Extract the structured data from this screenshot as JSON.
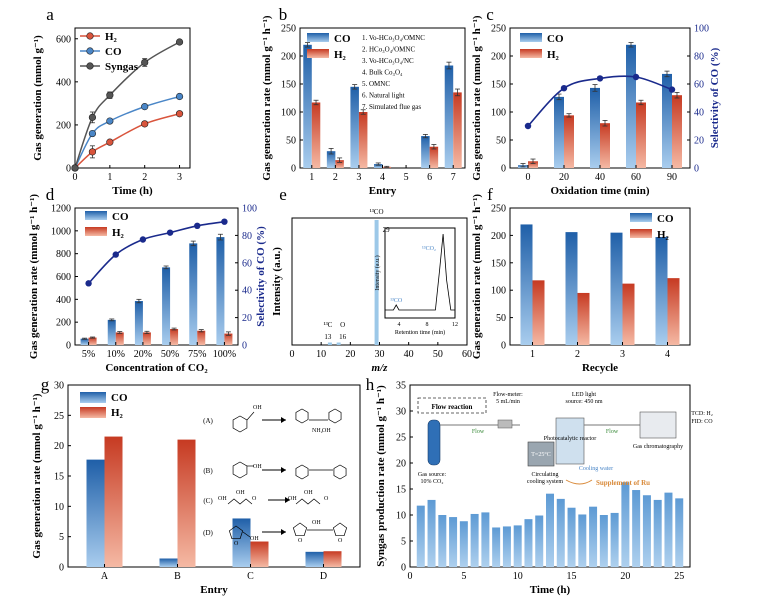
{
  "colors": {
    "co": "#4a86c7",
    "h2": "#d9543c",
    "syngas": "#555555",
    "selectivity": "#1a2a8c",
    "syngas_bars": "#7fb3df",
    "ms": "#9cc8e8"
  },
  "panels": {
    "a": {
      "letter": "a",
      "legend": [
        "H₂",
        "CO",
        "Syngas"
      ]
    },
    "b": {
      "letter": "b",
      "legend": [
        "CO",
        "H₂"
      ],
      "notes": [
        "1. Vo-HCo₃O₄/OMNC",
        "2. HCo₃O₄/OMNC",
        "3. Vo-HCo₃O₄/NC",
        "4. Bulk Co₃O₄",
        "5. OMNC",
        "6. Natural light",
        "7. Simulated flue gas"
      ]
    },
    "c": {
      "letter": "c",
      "legend": [
        "CO",
        "H₂"
      ]
    },
    "d": {
      "letter": "d",
      "legend": [
        "CO",
        "H₂"
      ]
    },
    "e": {
      "letter": "e",
      "peaks": [
        "¹³CO",
        "29",
        "¹³C",
        "13",
        "O",
        "16"
      ],
      "inset": {
        "ylabel": "Intensity (a.u.)",
        "xlabel": "Retention time (min)",
        "ticks": [
          "4",
          "8",
          "12"
        ],
        "peak_labels": [
          "¹³CO₂",
          "¹³CO"
        ]
      }
    },
    "f": {
      "letter": "f",
      "legend": [
        "CO",
        "H₂"
      ]
    },
    "g": {
      "letter": "g",
      "legend": [
        "CO",
        "H₂"
      ],
      "reactions": [
        "(A)",
        "(B)",
        "(C)",
        "(D)"
      ],
      "groups": [
        "OH",
        "NH₂",
        "OH",
        "OH",
        "OH",
        "OH",
        "O",
        "OH",
        "OH",
        "O",
        "O",
        "OH",
        "O",
        "OH",
        "O"
      ]
    },
    "h": {
      "letter": "h",
      "schematic": {
        "title": "Flow reaction",
        "flow_meter": "Flow-meter:",
        "flow_rate": "5 mL/min",
        "led": "LED light",
        "led_source": "source: 450 nm",
        "flow1": "Flow",
        "flow2": "Flow",
        "gas_source": "Gas source:",
        "gas_conc": "10% CO₂",
        "reactor": "Photocatalytic reactor",
        "temp": "T=25°C",
        "cooling": "Circulating",
        "cooling2": "cooling system",
        "cooling_water": "Cooling water",
        "gc": "Gas chromatography",
        "tcd": "TCD: H₂",
        "fid": "FID: CO",
        "supplement": "Supplement of Ru"
      }
    }
  },
  "chart_data": [
    {
      "panel": "a",
      "type": "line",
      "xlabel": "Time (h)",
      "ylabel": "Gas generation (mmol g⁻¹)",
      "xlim": [
        0,
        3.3
      ],
      "ylim": [
        0,
        650
      ],
      "xticks": [
        0,
        1,
        2,
        3
      ],
      "yticks": [
        0,
        200,
        400,
        600
      ],
      "x": [
        0,
        0.5,
        1,
        2,
        3
      ],
      "series": [
        {
          "name": "H₂",
          "values": [
            0,
            75,
            120,
            205,
            252
          ],
          "err": [
            0,
            28,
            8,
            10,
            6
          ]
        },
        {
          "name": "CO",
          "values": [
            0,
            160,
            218,
            285,
            332
          ],
          "err": [
            0,
            8,
            8,
            6,
            6
          ]
        },
        {
          "name": "Syngas",
          "values": [
            0,
            235,
            338,
            490,
            585
          ],
          "err": [
            0,
            25,
            15,
            18,
            8
          ]
        }
      ]
    },
    {
      "panel": "b",
      "type": "bar",
      "xlabel": "Entry",
      "ylabel": "Gas generation rate (mmol g⁻¹ h⁻¹)",
      "ylim": [
        0,
        250
      ],
      "yticks": [
        0,
        50,
        100,
        150,
        200,
        250
      ],
      "categories": [
        "1",
        "2",
        "3",
        "4",
        "5",
        "6",
        "7"
      ],
      "series": [
        {
          "name": "CO",
          "values": [
            220,
            30,
            145,
            7,
            0,
            57,
            183
          ],
          "err": [
            4,
            5,
            4,
            2,
            0,
            3,
            6
          ]
        },
        {
          "name": "H₂",
          "values": [
            117,
            14,
            100,
            2,
            0,
            38,
            135
          ],
          "err": [
            4,
            4,
            4,
            1,
            0,
            4,
            6
          ]
        }
      ]
    },
    {
      "panel": "c",
      "type": "bar",
      "xlabel": "Oxidation time (min)",
      "ylabel": "Gas generation rate (mmol g⁻¹ h⁻¹)",
      "y2label": "Selectivity of CO (%)",
      "ylim": [
        0,
        250
      ],
      "y2lim": [
        0,
        100
      ],
      "yticks": [
        0,
        50,
        100,
        150,
        200,
        250
      ],
      "y2ticks": [
        0,
        20,
        40,
        60,
        80,
        100
      ],
      "categories": [
        "0",
        "20",
        "40",
        "60",
        "90"
      ],
      "series": [
        {
          "name": "CO",
          "values": [
            5,
            127,
            143,
            220,
            168
          ],
          "err": [
            3,
            5,
            6,
            4,
            5
          ]
        },
        {
          "name": "H₂",
          "values": [
            12,
            94,
            80,
            117,
            130
          ],
          "err": [
            4,
            3,
            5,
            4,
            5
          ]
        }
      ],
      "selectivity": [
        30,
        57,
        64,
        65,
        56
      ]
    },
    {
      "panel": "d",
      "type": "bar",
      "xlabel": "Concentration of CO₂",
      "ylabel": "Gas generation rate (mmol g⁻¹ h⁻¹)",
      "y2label": "Selectivity of CO (%)",
      "ylim": [
        0,
        1200
      ],
      "y2lim": [
        0,
        100
      ],
      "yticks": [
        0,
        200,
        400,
        600,
        800,
        1000,
        1200
      ],
      "y2ticks": [
        0,
        20,
        40,
        60,
        80,
        100
      ],
      "categories": [
        "5%",
        "10%",
        "20%",
        "50%",
        "75%",
        "100%"
      ],
      "series": [
        {
          "name": "CO",
          "values": [
            55,
            220,
            385,
            680,
            890,
            945
          ],
          "err": [
            5,
            8,
            15,
            12,
            20,
            25
          ]
        },
        {
          "name": "H₂",
          "values": [
            65,
            110,
            110,
            140,
            125,
            100
          ],
          "err": [
            5,
            8,
            10,
            8,
            10,
            15
          ]
        }
      ],
      "selectivity": [
        45,
        66,
        77,
        82,
        87,
        90
      ]
    },
    {
      "panel": "e",
      "type": "bar",
      "xlabel": "m/z",
      "ylabel": "Intensity (a.u.)",
      "xlim": [
        0,
        60
      ],
      "xticks": [
        0,
        10,
        20,
        30,
        40,
        50,
        60
      ],
      "x": [
        13,
        16,
        29
      ],
      "values": [
        0.02,
        0.02,
        1.0
      ]
    },
    {
      "panel": "f",
      "type": "bar",
      "xlabel": "Recycle",
      "ylabel": "Gas generation rate (mmol g⁻¹ h⁻¹)",
      "ylim": [
        0,
        250
      ],
      "yticks": [
        0,
        50,
        100,
        150,
        200,
        250
      ],
      "categories": [
        "1",
        "2",
        "3",
        "4"
      ],
      "series": [
        {
          "name": "CO",
          "values": [
            220,
            206,
            205,
            197
          ]
        },
        {
          "name": "H₂",
          "values": [
            118,
            95,
            112,
            122
          ]
        }
      ]
    },
    {
      "panel": "g",
      "type": "bar",
      "xlabel": "Entry",
      "ylabel": "Gas generation rate (mmol g⁻¹ h⁻¹)",
      "ylim": [
        0,
        30
      ],
      "yticks": [
        0,
        5,
        10,
        15,
        20,
        25,
        30
      ],
      "categories": [
        "A",
        "B",
        "C",
        "D"
      ],
      "series": [
        {
          "name": "CO",
          "values": [
            17.7,
            1.4,
            8.0,
            2.5
          ]
        },
        {
          "name": "H₂",
          "values": [
            21.5,
            21.0,
            4.2,
            2.6
          ]
        }
      ]
    },
    {
      "panel": "h",
      "type": "bar",
      "xlabel": "Time (h)",
      "ylabel": "Syngas production rate (mmol g⁻¹ h⁻¹)",
      "ylim": [
        0,
        35
      ],
      "xlim": [
        0,
        26
      ],
      "xticks": [
        0,
        5,
        10,
        15,
        20,
        25
      ],
      "yticks": [
        0,
        5,
        10,
        15,
        20,
        25,
        30,
        35
      ],
      "x": [
        1,
        2,
        3,
        4,
        5,
        6,
        7,
        8,
        9,
        10,
        11,
        12,
        13,
        14,
        15,
        16,
        17,
        18,
        19,
        20,
        21,
        22,
        23,
        24,
        25
      ],
      "values": [
        11.8,
        12.9,
        10.0,
        9.6,
        8.8,
        10.2,
        10.5,
        7.6,
        7.8,
        8.0,
        9.2,
        9.9,
        14.1,
        13.1,
        11.4,
        10.1,
        11.6,
        10.0,
        10.4,
        16.3,
        14.8,
        13.8,
        12.9,
        14.3,
        13.2
      ]
    }
  ]
}
